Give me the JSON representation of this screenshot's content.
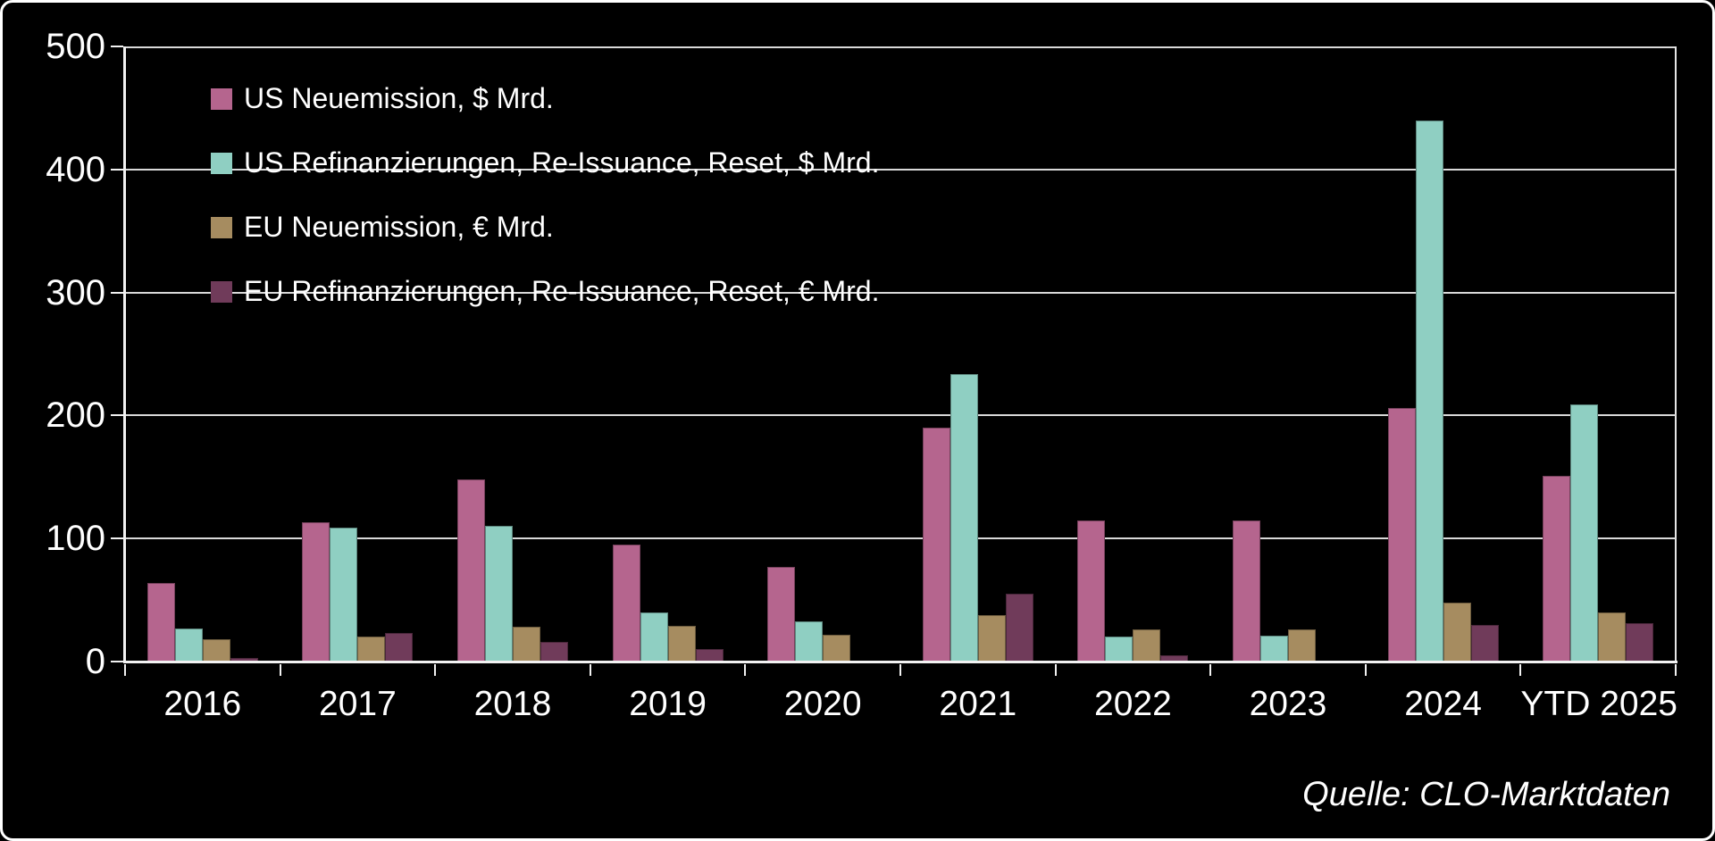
{
  "chart_data": {
    "type": "bar",
    "categories": [
      "2016",
      "2017",
      "2018",
      "2019",
      "2020",
      "2021",
      "2022",
      "2023",
      "2024",
      "YTD 2025"
    ],
    "series": [
      {
        "name": "US Neuemission, $ Mrd.",
        "color": "#b5658e",
        "values": [
          64,
          113,
          148,
          95,
          77,
          190,
          115,
          115,
          206,
          151
        ]
      },
      {
        "name": "US Refinanzierungen, Re-Issuance, Reset, $ Mrd.",
        "color": "#8fcfc2",
        "values": [
          27,
          109,
          110,
          40,
          33,
          234,
          20,
          21,
          440,
          209
        ]
      },
      {
        "name": "EU Neuemission, € Mrd.",
        "color": "#a68c60",
        "values": [
          18,
          20,
          28,
          29,
          22,
          38,
          26,
          26,
          48,
          40
        ]
      },
      {
        "name": "EU Refinanzierungen, Re-Issuance, Reset, € Mrd.",
        "color": "#703b5a",
        "values": [
          3,
          23,
          16,
          10,
          0,
          55,
          5,
          1,
          30,
          31
        ]
      }
    ],
    "title": "",
    "xlabel": "",
    "ylabel": "",
    "ylim": [
      0,
      500
    ],
    "yticks": [
      0,
      100,
      200,
      300,
      400,
      500
    ],
    "grid": true,
    "legend_position": "top-left",
    "source": "Quelle: CLO-Marktdaten"
  },
  "colors": {
    "background": "#000000",
    "frame_border": "#ffffff",
    "gridline": "#d9d9d9",
    "axis": "#f2f2f2",
    "text": "#ffffff"
  }
}
